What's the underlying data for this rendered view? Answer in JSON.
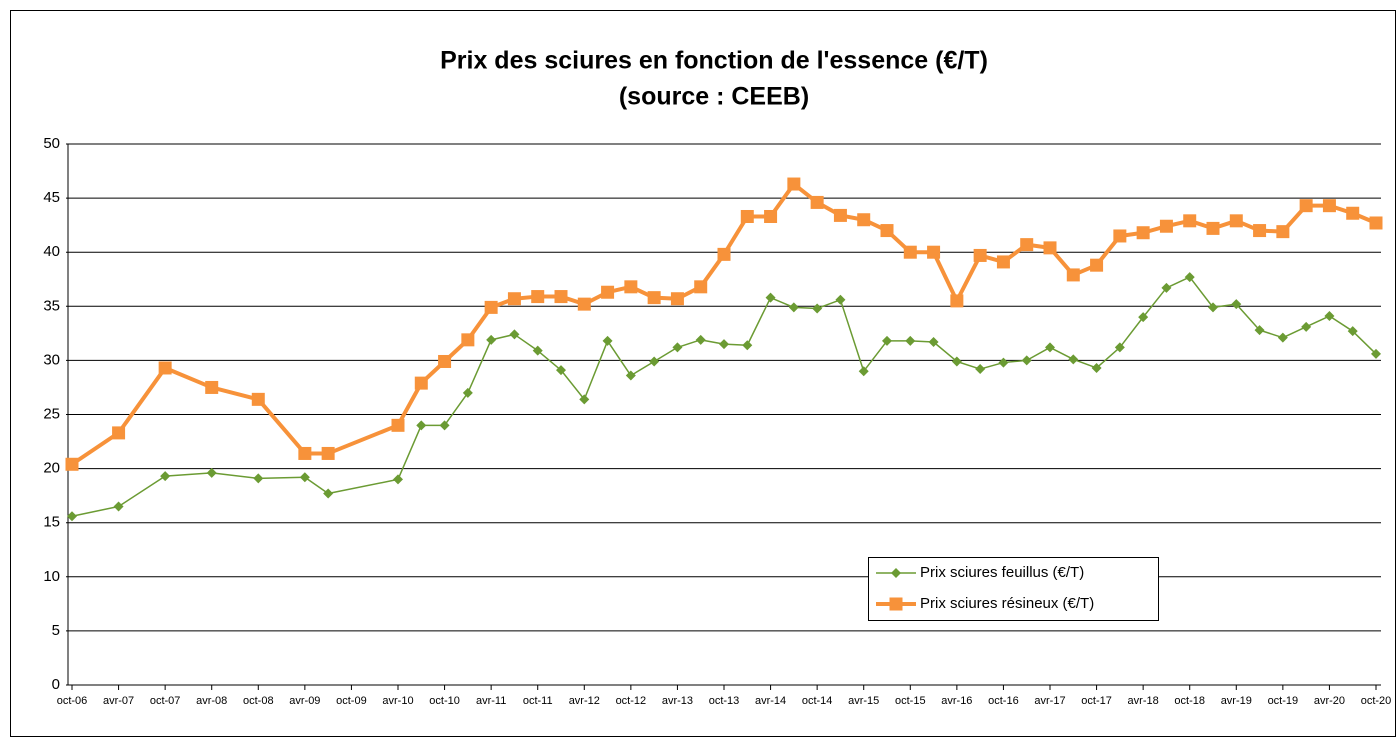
{
  "chart_data": {
    "type": "line",
    "title": "Prix des sciures en fonction de l'essence (€/T)",
    "subtitle": "(source : CEEB)",
    "x": [
      "2006-10",
      "2007-04",
      "2007-10",
      "2008-04",
      "2008-10",
      "2009-04",
      "2009-07",
      "2010-04",
      "2010-07",
      "2010-10",
      "2011-01",
      "2011-04",
      "2011-07",
      "2011-10",
      "2012-01",
      "2012-04",
      "2012-07",
      "2012-10",
      "2013-01",
      "2013-04",
      "2013-07",
      "2013-10",
      "2014-01",
      "2014-04",
      "2014-07",
      "2014-10",
      "2015-01",
      "2015-04",
      "2015-07",
      "2015-10",
      "2016-01",
      "2016-04",
      "2016-07",
      "2016-10",
      "2017-01",
      "2017-04",
      "2017-07",
      "2017-10",
      "2018-01",
      "2018-04",
      "2018-07",
      "2018-10",
      "2019-01",
      "2019-04",
      "2019-07",
      "2019-10",
      "2020-01",
      "2020-04",
      "2020-07",
      "2020-10"
    ],
    "series": [
      {
        "name": "Prix sciures feuillus (€/T)",
        "color": "#6b9b33",
        "marker": "diamond",
        "values": [
          15.6,
          16.5,
          19.3,
          19.6,
          19.1,
          19.2,
          17.7,
          19.0,
          24.0,
          24.0,
          27.0,
          31.9,
          32.4,
          30.9,
          29.1,
          26.4,
          31.8,
          28.6,
          29.9,
          31.2,
          31.9,
          31.5,
          31.4,
          35.8,
          34.9,
          34.8,
          35.6,
          29.0,
          31.8,
          31.8,
          31.7,
          29.9,
          29.2,
          29.8,
          30.0,
          31.2,
          30.1,
          29.3,
          31.2,
          34.0,
          36.7,
          37.7,
          34.9,
          35.2,
          32.8,
          32.1,
          33.1,
          34.1,
          32.7,
          30.6
        ]
      },
      {
        "name": "Prix sciures résineux (€/T)",
        "color": "#f7923a",
        "marker": "square",
        "values": [
          20.4,
          23.3,
          29.3,
          27.5,
          26.4,
          21.4,
          21.4,
          24.0,
          27.9,
          29.9,
          31.9,
          34.9,
          35.7,
          35.9,
          35.9,
          35.2,
          36.3,
          36.8,
          35.8,
          35.7,
          36.8,
          39.8,
          43.3,
          43.3,
          46.3,
          44.6,
          43.4,
          43.0,
          42.0,
          40.0,
          40.0,
          35.5,
          39.7,
          39.1,
          40.7,
          40.4,
          37.9,
          38.8,
          41.5,
          41.8,
          42.4,
          42.9,
          42.2,
          42.9,
          42.0,
          41.9,
          44.3,
          44.3,
          43.6,
          42.7
        ]
      }
    ],
    "xlim": [
      "2006-10",
      "2020-10"
    ],
    "xticks": [
      {
        "value": "2006-10",
        "label": "oct-06"
      },
      {
        "value": "2007-04",
        "label": "avr-07"
      },
      {
        "value": "2007-10",
        "label": "oct-07"
      },
      {
        "value": "2008-04",
        "label": "avr-08"
      },
      {
        "value": "2008-10",
        "label": "oct-08"
      },
      {
        "value": "2009-04",
        "label": "avr-09"
      },
      {
        "value": "2009-10",
        "label": "oct-09"
      },
      {
        "value": "2010-04",
        "label": "avr-10"
      },
      {
        "value": "2010-10",
        "label": "oct-10"
      },
      {
        "value": "2011-04",
        "label": "avr-11"
      },
      {
        "value": "2011-10",
        "label": "oct-11"
      },
      {
        "value": "2012-04",
        "label": "avr-12"
      },
      {
        "value": "2012-10",
        "label": "oct-12"
      },
      {
        "value": "2013-04",
        "label": "avr-13"
      },
      {
        "value": "2013-10",
        "label": "oct-13"
      },
      {
        "value": "2014-04",
        "label": "avr-14"
      },
      {
        "value": "2014-10",
        "label": "oct-14"
      },
      {
        "value": "2015-04",
        "label": "avr-15"
      },
      {
        "value": "2015-10",
        "label": "oct-15"
      },
      {
        "value": "2016-04",
        "label": "avr-16"
      },
      {
        "value": "2016-10",
        "label": "oct-16"
      },
      {
        "value": "2017-04",
        "label": "avr-17"
      },
      {
        "value": "2017-10",
        "label": "oct-17"
      },
      {
        "value": "2018-04",
        "label": "avr-18"
      },
      {
        "value": "2018-10",
        "label": "oct-18"
      },
      {
        "value": "2019-04",
        "label": "avr-19"
      },
      {
        "value": "2019-10",
        "label": "oct-19"
      },
      {
        "value": "2020-04",
        "label": "avr-20"
      },
      {
        "value": "2020-10",
        "label": "oct-20"
      }
    ],
    "ylim": [
      0,
      50
    ],
    "yticks": [
      0,
      5,
      10,
      15,
      20,
      25,
      30,
      35,
      40,
      45,
      50
    ],
    "grid": true
  }
}
